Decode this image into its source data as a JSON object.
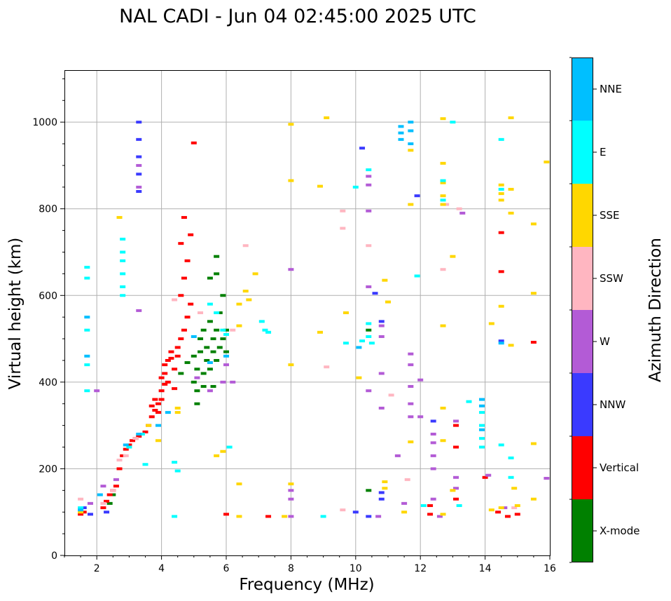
{
  "chart_data": {
    "type": "scatter",
    "title": "NAL CADI - Jun 04 02:45:00 2025 UTC",
    "xlabel": "Frequency (MHz)",
    "ylabel": "Virtual height (km)",
    "xlim": [
      1,
      16
    ],
    "ylim": [
      0,
      1120
    ],
    "xticks": [
      2,
      4,
      6,
      8,
      10,
      12,
      14,
      16
    ],
    "yticks": [
      0,
      200,
      400,
      600,
      800,
      1000
    ],
    "grid": true,
    "colorbar": {
      "label": "Azimuth Direction",
      "categories": [
        "X-mode",
        "Vertical",
        "NNW",
        "W",
        "SSW",
        "SSE",
        "E",
        "NNE"
      ],
      "colors": [
        "#008000",
        "#ff0000",
        "#3a3aff",
        "#b35bd6",
        "#ffb6c1",
        "#ffd700",
        "#00ffff",
        "#00bfff"
      ]
    },
    "series": [
      {
        "name": "X-mode",
        "points": [
          [
            2.4,
            120
          ],
          [
            2.5,
            140
          ],
          [
            4.6,
            420
          ],
          [
            4.8,
            445
          ],
          [
            5.0,
            460
          ],
          [
            5.1,
            380
          ],
          [
            5.1,
            430
          ],
          [
            5.2,
            470
          ],
          [
            5.2,
            500
          ],
          [
            5.3,
            420
          ],
          [
            5.3,
            520
          ],
          [
            5.4,
            450
          ],
          [
            5.4,
            480
          ],
          [
            5.5,
            430
          ],
          [
            5.5,
            540
          ],
          [
            5.6,
            470
          ],
          [
            5.6,
            500
          ],
          [
            5.7,
            520
          ],
          [
            5.7,
            450
          ],
          [
            5.8,
            560
          ],
          [
            5.8,
            480
          ],
          [
            5.9,
            500
          ],
          [
            5.9,
            600
          ],
          [
            6.0,
            470
          ],
          [
            5.7,
            650
          ],
          [
            5.7,
            690
          ],
          [
            5.5,
            640
          ],
          [
            5.3,
            390
          ],
          [
            5.1,
            350
          ],
          [
            6.0,
            520
          ],
          [
            10.4,
            150
          ],
          [
            10.4,
            520
          ],
          [
            5.6,
            390
          ],
          [
            5.0,
            400
          ]
        ]
      },
      {
        "name": "Vertical",
        "points": [
          [
            1.5,
            95
          ],
          [
            1.6,
            100
          ],
          [
            2.2,
            110
          ],
          [
            2.3,
            125
          ],
          [
            2.4,
            140
          ],
          [
            2.5,
            150
          ],
          [
            2.6,
            160
          ],
          [
            2.7,
            200
          ],
          [
            2.8,
            230
          ],
          [
            2.9,
            245
          ],
          [
            3.0,
            255
          ],
          [
            3.1,
            265
          ],
          [
            3.2,
            270
          ],
          [
            3.3,
            275
          ],
          [
            3.5,
            285
          ],
          [
            3.6,
            300
          ],
          [
            3.7,
            320
          ],
          [
            3.8,
            335
          ],
          [
            3.9,
            350
          ],
          [
            4.0,
            380
          ],
          [
            4.0,
            410
          ],
          [
            4.1,
            420
          ],
          [
            4.1,
            440
          ],
          [
            4.2,
            450
          ],
          [
            4.3,
            455
          ],
          [
            4.3,
            470
          ],
          [
            4.4,
            430
          ],
          [
            4.5,
            460
          ],
          [
            4.5,
            480
          ],
          [
            4.6,
            500
          ],
          [
            4.7,
            520
          ],
          [
            4.8,
            550
          ],
          [
            4.9,
            580
          ],
          [
            4.6,
            600
          ],
          [
            4.7,
            640
          ],
          [
            4.8,
            680
          ],
          [
            4.6,
            720
          ],
          [
            4.9,
            740
          ],
          [
            4.7,
            780
          ],
          [
            4.0,
            360
          ],
          [
            4.1,
            395
          ],
          [
            3.9,
            330
          ],
          [
            4.2,
            400
          ],
          [
            4.4,
            385
          ],
          [
            3.8,
            360
          ],
          [
            3.7,
            345
          ],
          [
            6.0,
            95
          ],
          [
            7.3,
            90
          ],
          [
            12.3,
            95
          ],
          [
            12.3,
            115
          ],
          [
            13.1,
            250
          ],
          [
            13.1,
            300
          ],
          [
            13.1,
            130
          ],
          [
            14.0,
            180
          ],
          [
            14.4,
            100
          ],
          [
            14.5,
            745
          ],
          [
            14.5,
            655
          ],
          [
            14.7,
            90
          ],
          [
            15.0,
            95
          ],
          [
            15.5,
            492
          ],
          [
            5.0,
            952
          ]
        ]
      },
      {
        "name": "NNW",
        "points": [
          [
            1.6,
            110
          ],
          [
            1.8,
            95
          ],
          [
            2.3,
            100
          ],
          [
            3.3,
            840
          ],
          [
            3.3,
            880
          ],
          [
            3.3,
            920
          ],
          [
            3.3,
            960
          ],
          [
            3.3,
            1000
          ],
          [
            10.2,
            940
          ],
          [
            10.8,
            145
          ],
          [
            10.8,
            130
          ],
          [
            10.8,
            540
          ],
          [
            10.6,
            605
          ],
          [
            10.0,
            100
          ],
          [
            10.4,
            90
          ],
          [
            11.9,
            830
          ],
          [
            12.4,
            310
          ],
          [
            14.5,
            495
          ]
        ]
      },
      {
        "name": "W",
        "points": [
          [
            1.8,
            120
          ],
          [
            2.0,
            380
          ],
          [
            2.2,
            160
          ],
          [
            2.6,
            175
          ],
          [
            3.3,
            565
          ],
          [
            3.3,
            850
          ],
          [
            3.3,
            900
          ],
          [
            5.1,
            410
          ],
          [
            5.5,
            380
          ],
          [
            5.9,
            400
          ],
          [
            6.0,
            440
          ],
          [
            6.2,
            400
          ],
          [
            8.0,
            90
          ],
          [
            8.0,
            130
          ],
          [
            8.0,
            150
          ],
          [
            8.0,
            660
          ],
          [
            10.4,
            380
          ],
          [
            10.4,
            620
          ],
          [
            10.4,
            795
          ],
          [
            10.4,
            855
          ],
          [
            10.4,
            875
          ],
          [
            10.7,
            90
          ],
          [
            10.8,
            340
          ],
          [
            10.8,
            420
          ],
          [
            10.8,
            505
          ],
          [
            10.8,
            530
          ],
          [
            11.3,
            230
          ],
          [
            11.5,
            120
          ],
          [
            11.7,
            320
          ],
          [
            11.7,
            350
          ],
          [
            11.7,
            390
          ],
          [
            11.7,
            440
          ],
          [
            11.7,
            465
          ],
          [
            12.0,
            320
          ],
          [
            12.0,
            405
          ],
          [
            12.4,
            130
          ],
          [
            12.4,
            200
          ],
          [
            12.4,
            230
          ],
          [
            12.4,
            260
          ],
          [
            12.4,
            280
          ],
          [
            12.6,
            90
          ],
          [
            13.1,
            180
          ],
          [
            13.1,
            155
          ],
          [
            13.1,
            310
          ],
          [
            13.3,
            790
          ],
          [
            14.1,
            185
          ],
          [
            14.6,
            110
          ],
          [
            15.9,
            178
          ]
        ]
      },
      {
        "name": "SSW",
        "points": [
          [
            1.5,
            130
          ],
          [
            2.2,
            120
          ],
          [
            2.5,
            150
          ],
          [
            2.7,
            220
          ],
          [
            2.9,
            230
          ],
          [
            3.2,
            270
          ],
          [
            4.4,
            590
          ],
          [
            5.2,
            560
          ],
          [
            6.2,
            520
          ],
          [
            6.6,
            715
          ],
          [
            9.1,
            435
          ],
          [
            9.6,
            795
          ],
          [
            9.6,
            755
          ],
          [
            9.6,
            105
          ],
          [
            10.4,
            715
          ],
          [
            11.1,
            370
          ],
          [
            11.6,
            175
          ],
          [
            12.7,
            660
          ],
          [
            12.8,
            810
          ],
          [
            13.2,
            800
          ],
          [
            14.9,
            110
          ]
        ]
      },
      {
        "name": "SSE",
        "points": [
          [
            1.5,
            100
          ],
          [
            2.7,
            780
          ],
          [
            3.6,
            300
          ],
          [
            3.9,
            265
          ],
          [
            4.5,
            330
          ],
          [
            4.5,
            340
          ],
          [
            5.7,
            230
          ],
          [
            5.9,
            240
          ],
          [
            6.4,
            580
          ],
          [
            6.7,
            590
          ],
          [
            6.6,
            610
          ],
          [
            6.4,
            530
          ],
          [
            6.4,
            165
          ],
          [
            6.4,
            90
          ],
          [
            6.9,
            650
          ],
          [
            7.8,
            90
          ],
          [
            8.0,
            165
          ],
          [
            8.0,
            440
          ],
          [
            8.0,
            865
          ],
          [
            8.0,
            995
          ],
          [
            8.9,
            515
          ],
          [
            8.9,
            852
          ],
          [
            9.1,
            1010
          ],
          [
            9.7,
            560
          ],
          [
            10.1,
            410
          ],
          [
            10.9,
            635
          ],
          [
            10.9,
            155
          ],
          [
            10.9,
            170
          ],
          [
            11.0,
            585
          ],
          [
            11.5,
            100
          ],
          [
            11.7,
            262
          ],
          [
            11.7,
            810
          ],
          [
            11.7,
            935
          ],
          [
            12.7,
            1008
          ],
          [
            12.7,
            905
          ],
          [
            12.7,
            860
          ],
          [
            12.7,
            830
          ],
          [
            12.7,
            810
          ],
          [
            12.7,
            530
          ],
          [
            12.7,
            340
          ],
          [
            12.7,
            265
          ],
          [
            12.7,
            95
          ],
          [
            13.0,
            150
          ],
          [
            13.0,
            690
          ],
          [
            14.2,
            535
          ],
          [
            14.2,
            105
          ],
          [
            14.5,
            110
          ],
          [
            14.5,
            575
          ],
          [
            14.5,
            835
          ],
          [
            14.5,
            855
          ],
          [
            14.5,
            820
          ],
          [
            14.8,
            1010
          ],
          [
            14.8,
            845
          ],
          [
            14.8,
            790
          ],
          [
            14.8,
            485
          ],
          [
            14.9,
            155
          ],
          [
            15.0,
            115
          ],
          [
            15.5,
            765
          ],
          [
            15.5,
            605
          ],
          [
            15.5,
            258
          ],
          [
            15.5,
            130
          ],
          [
            15.9,
            908
          ]
        ]
      },
      {
        "name": "E",
        "points": [
          [
            1.5,
            110
          ],
          [
            1.7,
            380
          ],
          [
            1.7,
            440
          ],
          [
            1.7,
            520
          ],
          [
            1.7,
            640
          ],
          [
            1.7,
            665
          ],
          [
            2.8,
            600
          ],
          [
            2.8,
            620
          ],
          [
            2.8,
            650
          ],
          [
            2.8,
            680
          ],
          [
            2.8,
            700
          ],
          [
            2.8,
            730
          ],
          [
            3.0,
            250
          ],
          [
            3.4,
            280
          ],
          [
            3.5,
            210
          ],
          [
            4.5,
            195
          ],
          [
            4.4,
            215
          ],
          [
            4.4,
            90
          ],
          [
            5.5,
            580
          ],
          [
            5.7,
            560
          ],
          [
            5.9,
            520
          ],
          [
            6.0,
            510
          ],
          [
            6.1,
            250
          ],
          [
            7.1,
            540
          ],
          [
            7.2,
            520
          ],
          [
            7.3,
            515
          ],
          [
            9.0,
            90
          ],
          [
            9.7,
            490
          ],
          [
            10.0,
            850
          ],
          [
            10.2,
            495
          ],
          [
            10.4,
            890
          ],
          [
            10.4,
            535
          ],
          [
            10.4,
            505
          ],
          [
            10.5,
            490
          ],
          [
            11.9,
            645
          ],
          [
            12.1,
            115
          ],
          [
            12.7,
            865
          ],
          [
            12.7,
            820
          ],
          [
            13.2,
            115
          ],
          [
            13.5,
            355
          ],
          [
            13.9,
            270
          ],
          [
            13.9,
            300
          ],
          [
            13.9,
            330
          ],
          [
            13.9,
            250
          ],
          [
            14.5,
            960
          ],
          [
            14.5,
            845
          ],
          [
            14.5,
            255
          ],
          [
            14.8,
            225
          ],
          [
            14.8,
            180
          ],
          [
            13.0,
            1000
          ]
        ]
      },
      {
        "name": "NNE",
        "points": [
          [
            1.5,
            105
          ],
          [
            1.7,
            550
          ],
          [
            1.7,
            460
          ],
          [
            2.1,
            140
          ],
          [
            2.9,
            255
          ],
          [
            3.3,
            280
          ],
          [
            3.9,
            300
          ],
          [
            4.2,
            330
          ],
          [
            5.0,
            505
          ],
          [
            5.5,
            445
          ],
          [
            6.0,
            460
          ],
          [
            10.1,
            480
          ],
          [
            11.4,
            990
          ],
          [
            11.4,
            975
          ],
          [
            11.4,
            960
          ],
          [
            11.7,
            1000
          ],
          [
            11.7,
            980
          ],
          [
            11.7,
            950
          ],
          [
            13.9,
            290
          ],
          [
            13.9,
            345
          ],
          [
            13.9,
            360
          ],
          [
            14.5,
            490
          ]
        ]
      }
    ]
  }
}
